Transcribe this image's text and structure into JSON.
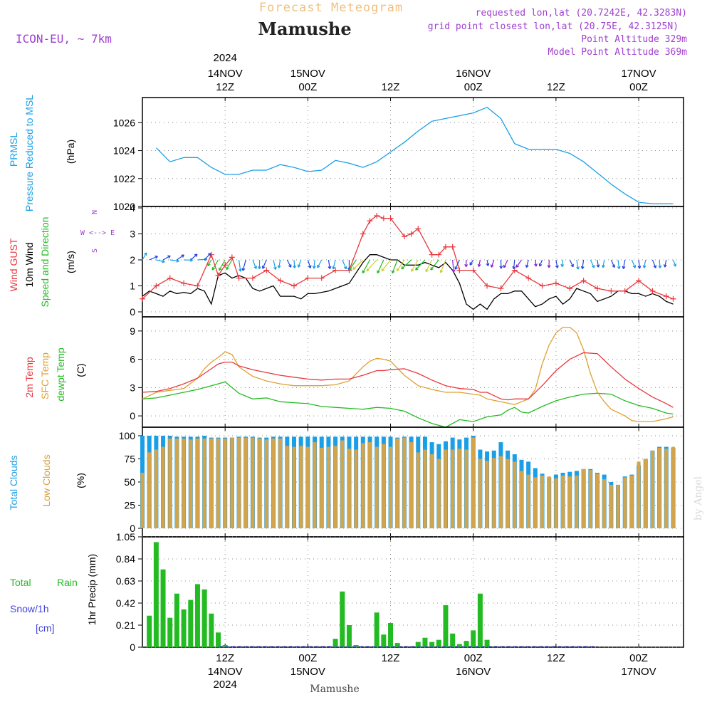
{
  "header": {
    "product": "Forecast Meteogram",
    "location": "Mamushe",
    "model": "ICON-EU, ~ 7km",
    "requested": "requested lon,lat (20.7242E, 42.3283N)",
    "gridpoint": "grid point closest lon,lat (20.75E, 42.3125N)",
    "point_alt": "Point Altitude 329m",
    "model_alt": "Model Point Altitude 369m",
    "footer_location": "Mamushe",
    "watermark": "by Angel"
  },
  "colors": {
    "pressure": "#1a9fe6",
    "gust": "#e8383d",
    "wind": "#000000",
    "windlabel": "#22bb22",
    "temp2m": "#e8383d",
    "sfctemp": "#e0a030",
    "dewpt": "#22bb22",
    "total_clouds": "#1a9fe6",
    "low_clouds": "#d4a44a",
    "rain": "#22bb22",
    "snow": "#4444dd",
    "header_purple": "#a040d0",
    "header_orange": "#f0c080"
  },
  "top_axis_labels": [
    {
      "line1": "2024",
      "line2": "14NOV",
      "line3": "12Z"
    },
    {
      "line1": "",
      "line2": "15NOV",
      "line3": "00Z"
    },
    {
      "line1": "",
      "line2": "",
      "line3": "12Z"
    },
    {
      "line1": "",
      "line2": "16NOV",
      "line3": "00Z"
    },
    {
      "line1": "",
      "line2": "",
      "line3": "12Z"
    },
    {
      "line1": "",
      "line2": "17NOV",
      "line3": "00Z"
    }
  ],
  "bottom_axis_labels": [
    {
      "line1": "12Z",
      "line2": "14NOV",
      "line3": "2024"
    },
    {
      "line1": "00Z",
      "line2": "15NOV",
      "line3": ""
    },
    {
      "line1": "12Z",
      "line2": "",
      "line3": ""
    },
    {
      "line1": "00Z",
      "line2": "16NOV",
      "line3": ""
    },
    {
      "line1": "12Z",
      "line2": "",
      "line3": ""
    },
    {
      "line1": "00Z",
      "line2": "17NOV",
      "line3": ""
    }
  ],
  "panel_labels": {
    "pressure": [
      "PRMSL",
      "Pressure Reduced to MSL"
    ],
    "pressure_unit": "(hPa)",
    "wind_gust": "Wind GUST",
    "wind_10m": "10m Wind",
    "wind_dir": "Speed and Direction",
    "wind_unit": "(m/s)",
    "compass": [
      "N",
      "W <--> E",
      "S"
    ],
    "temp_2m": "2m Temp",
    "temp_sfc": "SFC Temp",
    "temp_dew": "dewpt Temp",
    "temp_unit": "(C)",
    "cloud_total": "Total Clouds",
    "cloud_low": "Low Clouds",
    "cloud_unit": "(%)",
    "rain_total": "Total",
    "rain_rain": "Rain",
    "snow_label": "Snow/1h",
    "snow_unit": "[cm]",
    "precip_axis": "1hr Precip (mm)"
  },
  "chart_data": [
    {
      "type": "line",
      "name": "pressure",
      "hours_start_utc": "2024-11-14 00Z",
      "ylim": [
        1020,
        1027.8
      ],
      "yticks": [
        "1020",
        "1022",
        "1024",
        "1026"
      ],
      "xtick_hours": [
        12,
        24,
        36,
        48,
        60,
        72
      ],
      "series": [
        {
          "name": "PRMSL",
          "x": [
            2,
            4,
            6,
            8,
            10,
            12,
            14,
            16,
            18,
            20,
            22,
            24,
            26,
            28,
            30,
            32,
            34,
            36,
            38,
            40,
            42,
            44,
            46,
            48,
            50,
            52,
            54,
            56,
            58,
            60,
            62,
            64,
            66,
            68,
            70,
            72,
            74,
            76,
            77
          ],
          "values": [
            1024.2,
            1023.2,
            1023.5,
            1023.5,
            1022.8,
            1022.3,
            1022.3,
            1022.6,
            1022.6,
            1023.0,
            1022.8,
            1022.5,
            1022.6,
            1023.3,
            1023.1,
            1022.8,
            1023.2,
            1023.9,
            1024.6,
            1025.4,
            1026.1,
            1026.3,
            1026.5,
            1026.7,
            1027.1,
            1026.3,
            1024.5,
            1024.1,
            1024.1,
            1024.1,
            1023.8,
            1023.2,
            1022.4,
            1021.6,
            1020.9,
            1020.3,
            1020.2,
            1020.2,
            1020.2
          ]
        }
      ]
    },
    {
      "type": "line",
      "name": "wind",
      "ylim": [
        0,
        4
      ],
      "yticks": [
        "0",
        "1",
        "2",
        "3",
        "4"
      ],
      "series": [
        {
          "name": "Wind GUST",
          "x": [
            0,
            2,
            4,
            6,
            8,
            10,
            11,
            12,
            13,
            14,
            16,
            18,
            20,
            22,
            24,
            26,
            28,
            30,
            32,
            33,
            34,
            35,
            36,
            38,
            39,
            40,
            42,
            43,
            44,
            45,
            46,
            48,
            50,
            52,
            54,
            56,
            58,
            60,
            62,
            64,
            66,
            68,
            70,
            72,
            74,
            76,
            77
          ],
          "values": [
            0.5,
            1.0,
            1.3,
            1.1,
            1.0,
            2.2,
            1.4,
            1.8,
            2.1,
            1.3,
            1.3,
            1.6,
            1.2,
            1.0,
            1.3,
            1.3,
            1.6,
            1.6,
            3.0,
            3.5,
            3.7,
            3.6,
            3.6,
            2.9,
            3.0,
            3.2,
            2.2,
            2.2,
            2.5,
            2.5,
            1.6,
            1.6,
            1.0,
            0.9,
            1.6,
            1.3,
            1.0,
            1.1,
            0.9,
            1.2,
            0.9,
            0.8,
            0.8,
            1.2,
            0.8,
            0.6,
            0.5
          ]
        },
        {
          "name": "10m Wind",
          "x": [
            0,
            1,
            2,
            3,
            4,
            5,
            6,
            7,
            8,
            9,
            10,
            11,
            12,
            13,
            14,
            15,
            16,
            17,
            18,
            19,
            20,
            21,
            22,
            23,
            24,
            25,
            26,
            27,
            28,
            29,
            30,
            31,
            32,
            33,
            34,
            35,
            36,
            37,
            38,
            39,
            40,
            41,
            42,
            43,
            44,
            45,
            46,
            47,
            48,
            49,
            50,
            51,
            52,
            53,
            54,
            55,
            56,
            57,
            58,
            59,
            60,
            61,
            62,
            63,
            64,
            65,
            66,
            67,
            68,
            69,
            70,
            71,
            72,
            73,
            74,
            75,
            76,
            77
          ],
          "values": [
            0.6,
            0.8,
            0.7,
            0.6,
            0.8,
            0.7,
            0.75,
            0.7,
            0.9,
            0.8,
            0.3,
            1.4,
            1.5,
            1.3,
            1.4,
            1.3,
            0.9,
            0.8,
            0.9,
            1.0,
            0.6,
            0.6,
            0.6,
            0.5,
            0.7,
            0.7,
            0.75,
            0.8,
            0.9,
            1.0,
            1.1,
            1.5,
            1.9,
            2.2,
            2.2,
            2.1,
            2.0,
            2.0,
            1.8,
            1.8,
            1.8,
            1.9,
            1.8,
            1.7,
            1.9,
            1.6,
            1.1,
            0.3,
            0.1,
            0.3,
            0.1,
            0.5,
            0.7,
            0.7,
            0.8,
            0.8,
            0.5,
            0.2,
            0.3,
            0.5,
            0.6,
            0.3,
            0.5,
            0.9,
            0.8,
            0.7,
            0.4,
            0.5,
            0.6,
            0.8,
            0.8,
            0.7,
            0.7,
            0.6,
            0.7,
            0.6,
            0.4,
            0.3
          ]
        }
      ]
    },
    {
      "type": "line",
      "name": "temperature",
      "ylim": [
        -1.2,
        10.5
      ],
      "yticks": [
        "0",
        "3",
        "6",
        "9"
      ],
      "series": [
        {
          "name": "2m Temp",
          "x": [
            0,
            2,
            4,
            6,
            8,
            10,
            11,
            12,
            13,
            14,
            16,
            18,
            20,
            22,
            24,
            26,
            28,
            30,
            32,
            34,
            35,
            36,
            38,
            40,
            42,
            44,
            46,
            48,
            49,
            50,
            52,
            53,
            54,
            56,
            58,
            60,
            62,
            64,
            66,
            68,
            70,
            72,
            74,
            76,
            77
          ],
          "values": [
            2.5,
            2.6,
            2.9,
            3.4,
            4.0,
            5.0,
            5.5,
            5.7,
            5.7,
            5.3,
            4.9,
            4.6,
            4.3,
            4.1,
            3.9,
            3.8,
            3.9,
            3.9,
            4.3,
            4.8,
            4.8,
            4.9,
            5.0,
            4.5,
            3.8,
            3.2,
            2.9,
            2.8,
            2.5,
            2.5,
            1.8,
            1.7,
            1.8,
            1.8,
            3.2,
            4.8,
            6.0,
            6.7,
            6.6,
            5.2,
            3.9,
            2.9,
            2.0,
            1.3,
            0.9
          ]
        },
        {
          "name": "SFC Temp",
          "x": [
            0,
            2,
            4,
            6,
            8,
            9,
            10,
            11,
            12,
            13,
            14,
            16,
            18,
            20,
            22,
            24,
            26,
            28,
            30,
            32,
            33,
            34,
            35,
            36,
            38,
            40,
            42,
            44,
            46,
            48,
            49,
            50,
            52,
            54,
            56,
            57,
            58,
            59,
            60,
            61,
            62,
            63,
            64,
            65,
            66,
            67,
            68,
            70,
            71,
            72,
            74,
            76,
            77
          ],
          "values": [
            1.8,
            2.5,
            2.7,
            2.9,
            4.0,
            5.0,
            5.7,
            6.2,
            6.8,
            6.5,
            5.2,
            4.2,
            3.7,
            3.4,
            3.2,
            3.2,
            3.2,
            3.3,
            3.7,
            5.2,
            5.8,
            6.1,
            6.0,
            5.8,
            4.3,
            3.2,
            2.8,
            2.5,
            2.5,
            2.3,
            2.2,
            1.8,
            1.5,
            1.2,
            1.8,
            2.8,
            5.5,
            7.5,
            8.8,
            9.4,
            9.4,
            8.8,
            7.0,
            4.5,
            2.5,
            1.5,
            0.7,
            0.0,
            -0.5,
            -0.6,
            -0.6,
            -0.3,
            -0.1
          ]
        },
        {
          "name": "dewpt Temp",
          "x": [
            0,
            2,
            4,
            6,
            8,
            10,
            11,
            12,
            13,
            14,
            16,
            18,
            20,
            22,
            24,
            26,
            28,
            30,
            32,
            34,
            36,
            38,
            40,
            42,
            44,
            46,
            48,
            50,
            52,
            53,
            54,
            55,
            56,
            58,
            60,
            62,
            64,
            66,
            68,
            70,
            72,
            74,
            76,
            77
          ],
          "values": [
            1.8,
            1.9,
            2.2,
            2.5,
            2.8,
            3.2,
            3.4,
            3.6,
            3.0,
            2.4,
            1.8,
            1.9,
            1.5,
            1.4,
            1.3,
            1.0,
            0.9,
            0.8,
            0.7,
            0.9,
            0.8,
            0.5,
            -0.2,
            -0.8,
            -1.2,
            -0.4,
            -0.6,
            -0.1,
            0.1,
            0.6,
            0.9,
            0.4,
            0.3,
            1.0,
            1.6,
            2.0,
            2.3,
            2.4,
            2.3,
            1.6,
            1.1,
            0.8,
            0.3,
            0.2
          ]
        }
      ]
    },
    {
      "type": "bar",
      "name": "clouds",
      "ylim": [
        0,
        100
      ],
      "yticks": [
        "0",
        "25",
        "50",
        "75",
        "100"
      ],
      "series": [
        {
          "name": "Total Clouds",
          "values": [
            100,
            100,
            100,
            100,
            100,
            99,
            99,
            99,
            99,
            100,
            98,
            98,
            98,
            98,
            99,
            99,
            99,
            98,
            98,
            99,
            99,
            99,
            99,
            99,
            99,
            99,
            99,
            99,
            99,
            99,
            99,
            99,
            99,
            99,
            99,
            99,
            99,
            98,
            99,
            99,
            99,
            99,
            93,
            91,
            94,
            98,
            96,
            98,
            100,
            85,
            83,
            84,
            93,
            84,
            80,
            74,
            72,
            65,
            59,
            55,
            58,
            60,
            61,
            62,
            64,
            64,
            60,
            58,
            50,
            47,
            56,
            58,
            68,
            75,
            84,
            88,
            88,
            87
          ]
        },
        {
          "name": "Low Clouds",
          "values": [
            60,
            82,
            85,
            88,
            97,
            97,
            97,
            96,
            97,
            97,
            97,
            97,
            97,
            98,
            98,
            98,
            98,
            97,
            96,
            97,
            97,
            89,
            88,
            89,
            88,
            93,
            87,
            88,
            89,
            95,
            86,
            85,
            92,
            93,
            88,
            91,
            88,
            97,
            98,
            93,
            82,
            85,
            80,
            75,
            85,
            85,
            86,
            85,
            98,
            75,
            73,
            76,
            78,
            75,
            72,
            62,
            58,
            55,
            57,
            56,
            54,
            57,
            56,
            57,
            64,
            63,
            59,
            53,
            47,
            47,
            55,
            57,
            72,
            75,
            84,
            87,
            86,
            88
          ]
        }
      ]
    },
    {
      "type": "bar",
      "name": "precipitation",
      "ylim": [
        0,
        1.05
      ],
      "yticks": [
        "0",
        "0.21",
        "0.42",
        "0.63",
        "0.84",
        "1.05"
      ],
      "series": [
        {
          "name": "Total Rain",
          "x": [
            1,
            2,
            3,
            4,
            5,
            6,
            7,
            8,
            9,
            10,
            11,
            12,
            13,
            14,
            28,
            29,
            30,
            31,
            32,
            33,
            34,
            35,
            36,
            37,
            39,
            40,
            41,
            42,
            43,
            44,
            45,
            46,
            47,
            48,
            49,
            50,
            51
          ],
          "values": [
            0.3,
            1.0,
            0.74,
            0.28,
            0.51,
            0.36,
            0.45,
            0.6,
            0.55,
            0.32,
            0.14,
            0.02,
            0.0,
            0.0,
            0.08,
            0.53,
            0.21,
            0.02,
            0.0,
            0.0,
            0.33,
            0.12,
            0.23,
            0.04,
            0.0,
            0.05,
            0.09,
            0.05,
            0.07,
            0.4,
            0.13,
            0.03,
            0.06,
            0.16,
            0.51,
            0.07,
            0.0
          ]
        }
      ]
    }
  ]
}
